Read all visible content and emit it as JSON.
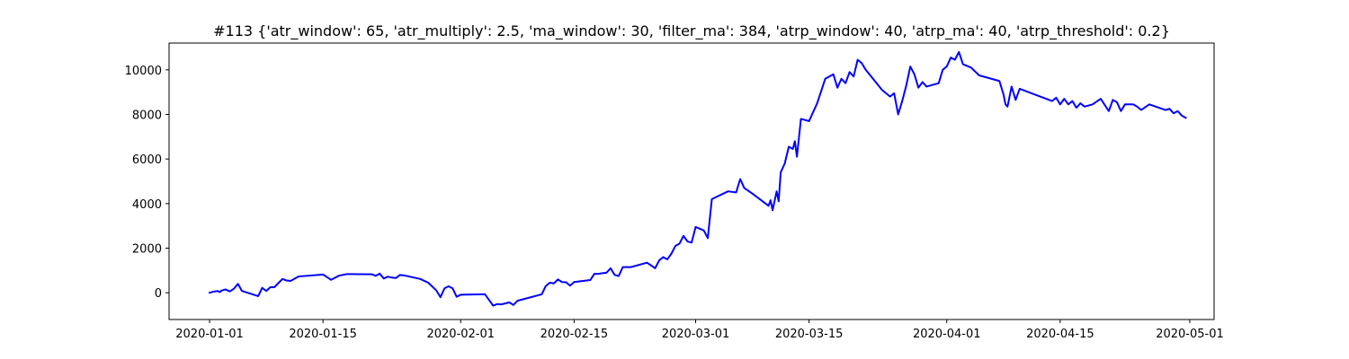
{
  "chart_data": {
    "type": "line",
    "title": "#113 {'atr_window': 65, 'atr_multiply': 2.5, 'ma_window': 30, 'filter_ma': 384, 'atrp_window': 40, 'atrp_ma': 40, 'atrp_threshold': 0.2}",
    "xlabel": "",
    "ylabel": "",
    "x_axis": "date",
    "xlim": [
      "2019-12-27",
      "2020-05-04"
    ],
    "ylim": [
      -1200,
      11200
    ],
    "x_ticks": [
      "2020-01-01",
      "2020-01-15",
      "2020-02-01",
      "2020-02-15",
      "2020-03-01",
      "2020-03-15",
      "2020-04-01",
      "2020-04-15",
      "2020-05-01"
    ],
    "y_ticks": [
      0,
      2000,
      4000,
      6000,
      8000,
      10000
    ],
    "grid": false,
    "color": "#0000ff",
    "series": [
      {
        "x": [
          "2020-01-01",
          "2020-01-01T12",
          "2020-01-02",
          "2020-01-02T06",
          "2020-01-02T12",
          "2020-01-03",
          "2020-01-03T06",
          "2020-01-03T12",
          "2020-01-04",
          "2020-01-04T12",
          "2020-01-05",
          "2020-01-07",
          "2020-01-07T12",
          "2020-01-08",
          "2020-01-08T12",
          "2020-01-09",
          "2020-01-10",
          "2020-01-10T12",
          "2020-01-11",
          "2020-01-12",
          "2020-01-15",
          "2020-01-15T12",
          "2020-01-16",
          "2020-01-17",
          "2020-01-18",
          "2020-01-21",
          "2020-01-21T12",
          "2020-01-22",
          "2020-01-22T12",
          "2020-01-23",
          "2020-01-23T12",
          "2020-01-24",
          "2020-01-24T12",
          "2020-01-25",
          "2020-01-27",
          "2020-01-28",
          "2020-01-29",
          "2020-01-29T12",
          "2020-01-30",
          "2020-01-30T12",
          "2020-01-31",
          "2020-01-31T12",
          "2020-02-01",
          "2020-02-04",
          "2020-02-05",
          "2020-02-05T12",
          "2020-02-06",
          "2020-02-06T12",
          "2020-02-07",
          "2020-02-07T12",
          "2020-02-08",
          "2020-02-11",
          "2020-02-11T12",
          "2020-02-12",
          "2020-02-12T12",
          "2020-02-13",
          "2020-02-13T12",
          "2020-02-14",
          "2020-02-14T12",
          "2020-02-15",
          "2020-02-17",
          "2020-02-17T12",
          "2020-02-18",
          "2020-02-18T12",
          "2020-02-19",
          "2020-02-19T12",
          "2020-02-20",
          "2020-02-20T12",
          "2020-02-21",
          "2020-02-22",
          "2020-02-24",
          "2020-02-25",
          "2020-02-25T12",
          "2020-02-26",
          "2020-02-26T12",
          "2020-02-27",
          "2020-02-27T12",
          "2020-02-28",
          "2020-02-28T12",
          "2020-02-29",
          "2020-02-29T12",
          "2020-03-01",
          "2020-03-02",
          "2020-03-02T12",
          "2020-03-03",
          "2020-03-05",
          "2020-03-06",
          "2020-03-06T12",
          "2020-03-07",
          "2020-03-08",
          "2020-03-10",
          "2020-03-10T06",
          "2020-03-10T12",
          "2020-03-11",
          "2020-03-11T06",
          "2020-03-11T12",
          "2020-03-12",
          "2020-03-12T12",
          "2020-03-13",
          "2020-03-13T06",
          "2020-03-13T12",
          "2020-03-14",
          "2020-03-14T12",
          "2020-03-15",
          "2020-03-16",
          "2020-03-17",
          "2020-03-18",
          "2020-03-18T12",
          "2020-03-19",
          "2020-03-19T12",
          "2020-03-20",
          "2020-03-20T12",
          "2020-03-21",
          "2020-03-21T12",
          "2020-03-22",
          "2020-03-24",
          "2020-03-25",
          "2020-03-25T12",
          "2020-03-26",
          "2020-03-26T12",
          "2020-03-27",
          "2020-03-27T12",
          "2020-03-28",
          "2020-03-28T12",
          "2020-03-29",
          "2020-03-29T12",
          "2020-03-30",
          "2020-03-31",
          "2020-03-31T12",
          "2020-04-01",
          "2020-04-01T12",
          "2020-04-02",
          "2020-04-02T12",
          "2020-04-03",
          "2020-04-04",
          "2020-04-05",
          "2020-04-07",
          "2020-04-07T12",
          "2020-04-08",
          "2020-04-08T06",
          "2020-04-08T12",
          "2020-04-09",
          "2020-04-09T12",
          "2020-04-10",
          "2020-04-14",
          "2020-04-14T12",
          "2020-04-15",
          "2020-04-15T12",
          "2020-04-16",
          "2020-04-16T12",
          "2020-04-17",
          "2020-04-17T12",
          "2020-04-18",
          "2020-04-19",
          "2020-04-20",
          "2020-04-21",
          "2020-04-21T12",
          "2020-04-22",
          "2020-04-22T12",
          "2020-04-23",
          "2020-04-24",
          "2020-04-24T12",
          "2020-04-25",
          "2020-04-26",
          "2020-04-28",
          "2020-04-28T12",
          "2020-04-29",
          "2020-04-29T12",
          "2020-04-30",
          "2020-04-30T12"
        ],
        "y": [
          0,
          50,
          80,
          30,
          100,
          150,
          100,
          60,
          180,
          400,
          80,
          -150,
          220,
          80,
          250,
          250,
          620,
          550,
          530,
          730,
          820,
          700,
          580,
          770,
          840,
          830,
          760,
          860,
          640,
          720,
          680,
          660,
          800,
          780,
          620,
          450,
          100,
          -200,
          200,
          290,
          200,
          -180,
          -90,
          -70,
          -580,
          -510,
          -520,
          -480,
          -430,
          -550,
          -360,
          -70,
          300,
          450,
          420,
          600,
          480,
          470,
          320,
          480,
          570,
          850,
          850,
          880,
          900,
          1100,
          800,
          750,
          1150,
          1150,
          1350,
          1100,
          1450,
          1600,
          1500,
          1750,
          2100,
          2200,
          2550,
          2300,
          2250,
          2950,
          2800,
          2450,
          4200,
          4550,
          4500,
          5100,
          4700,
          4450,
          3900,
          4150,
          3700,
          4550,
          4100,
          5400,
          5800,
          6550,
          6450,
          6800,
          6100,
          7800,
          7750,
          7700,
          8500,
          9600,
          9800,
          9200,
          9600,
          9400,
          9900,
          9700,
          10450,
          10300,
          10000,
          9100,
          8800,
          8950,
          8000,
          8600,
          9300,
          10150,
          9800,
          9200,
          9450,
          9250,
          9300,
          9400,
          10000,
          10150,
          10550,
          10450,
          10800,
          10250,
          10100,
          9750,
          9550,
          9500,
          8900,
          8450,
          8350,
          9250,
          8650,
          9150,
          8600,
          8750,
          8450,
          8700,
          8450,
          8600,
          8300,
          8500,
          8350,
          8450,
          8700,
          8150,
          8650,
          8550,
          8150,
          8450,
          8450,
          8350,
          8200,
          8450,
          8200,
          8250,
          8050,
          8150,
          7950,
          7850
        ]
      }
    ]
  }
}
